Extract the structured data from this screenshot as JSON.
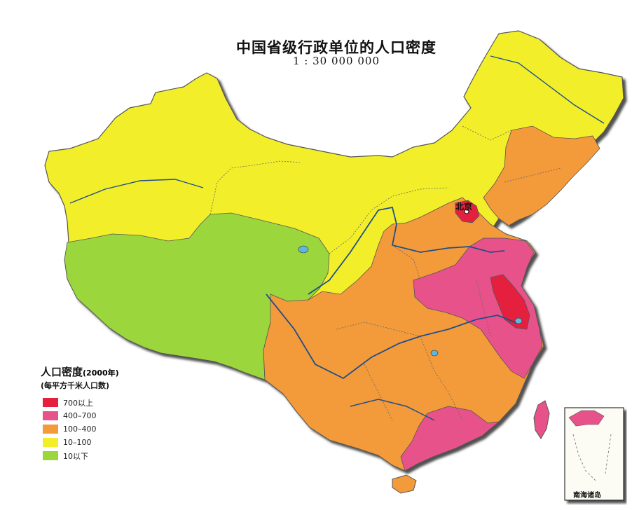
{
  "title": "中国省级行政单位的人口密度",
  "scale": "1 : 30 000 000",
  "legend": {
    "title": "人口密度",
    "year": "(2000年)",
    "unit": "(每平方千米人口数)",
    "items": [
      {
        "label": "700以上",
        "color": "#e5203e"
      },
      {
        "label": "400–700",
        "color": "#e8528a"
      },
      {
        "label": "100–400",
        "color": "#f39a3a"
      },
      {
        "label": "10–100",
        "color": "#f2ef2a"
      },
      {
        "label": "10以下",
        "color": "#9bd63c"
      }
    ]
  },
  "city": {
    "label": "北京"
  },
  "inset": {
    "label": "南海诸岛"
  }
}
